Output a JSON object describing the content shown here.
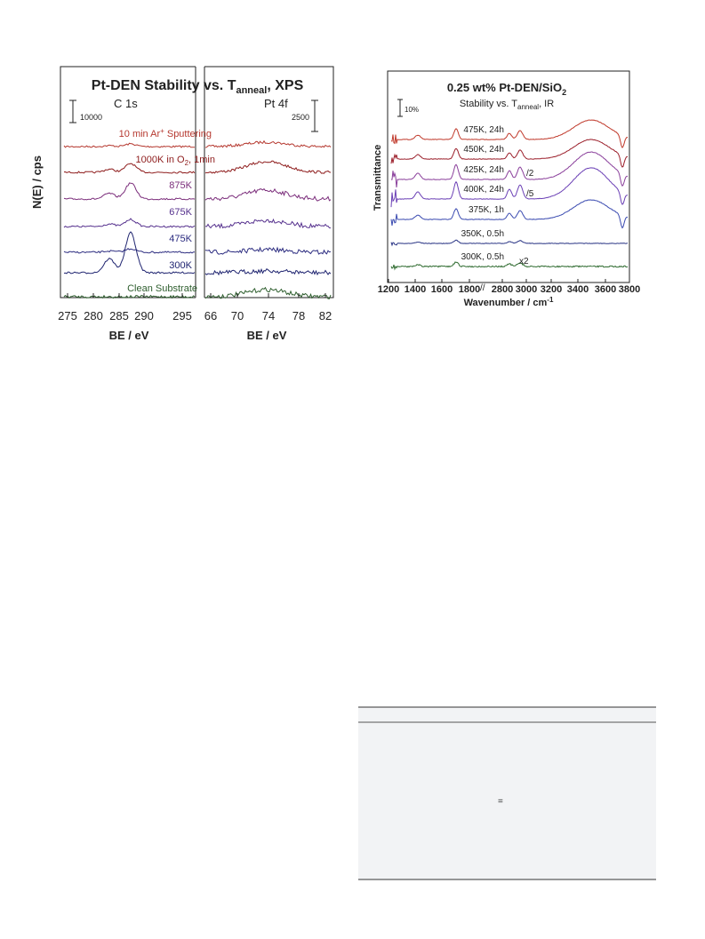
{
  "figure_xps": {
    "title": [
      "Pt-DEN Stability vs. T",
      "anneal",
      ", XPS"
    ],
    "left_panel": "C 1s",
    "right_panel": "Pt 4f",
    "left_scale": "10000",
    "right_scale": "2500",
    "y_label": "N(E) / cps",
    "x_label_left": "BE / eV",
    "x_label_right": "BE / eV",
    "left_ticks": [
      "275",
      "280",
      "285",
      "290",
      "295"
    ],
    "right_ticks": [
      "66",
      "70",
      "74",
      "78",
      "82"
    ],
    "traces": [
      [
        "10 min Ar",
        "+",
        " Sputtering"
      ],
      [
        "1000K in O",
        "2",
        ", 1min"
      ],
      [
        "875K"
      ],
      [
        "675K"
      ],
      [
        "475K"
      ],
      [
        "300K"
      ],
      [
        "Clean Substrate"
      ]
    ]
  },
  "figure_ir": {
    "title": [
      "0.25 wt% Pt-DEN/SiO",
      "2"
    ],
    "subtitle": [
      "Stability vs. T",
      "anneal",
      ", IR"
    ],
    "scale": "10%",
    "y_label": "Transmittance",
    "x_label": [
      "Wavenumber / cm",
      "-1"
    ],
    "ticks": [
      "1200",
      "1400",
      "1600",
      "1800",
      "2800",
      "3000",
      "3200",
      "3400",
      "3600",
      "3800"
    ],
    "traces": [
      "475K, 24h",
      "450K, 24h",
      "425K, 24h",
      "400K, 24h",
      "375K, 1h",
      "350K, 0.5h",
      "300K, 0.5h"
    ],
    "factors": [
      "/2",
      "/5",
      "x2"
    ]
  },
  "table": {
    "symbol": "="
  }
}
